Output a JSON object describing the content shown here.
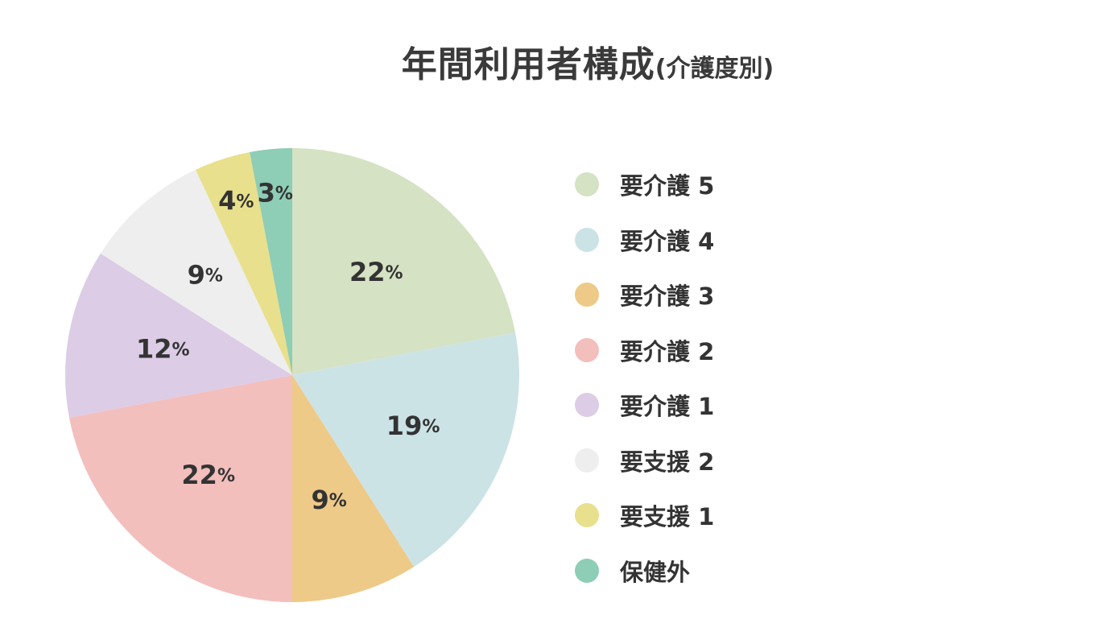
{
  "title": {
    "main": "年間利用者構成",
    "sub": "(介護度別)"
  },
  "chart_data": {
    "type": "pie",
    "title": "年間利用者構成(介護度別)",
    "start": "top",
    "direction": "clockwise",
    "legend_position": "right",
    "slices": [
      {
        "label": "要介護 5",
        "value": 22,
        "display": "22",
        "color": "#d5e2c3"
      },
      {
        "label": "要介護 4",
        "value": 19,
        "display": "19",
        "color": "#cce3e6"
      },
      {
        "label": "要介護 3",
        "value": 9,
        "display": "9",
        "color": "#eeca88"
      },
      {
        "label": "要介護 2",
        "value": 22,
        "display": "22",
        "color": "#f2bfbd"
      },
      {
        "label": "要介護 1",
        "value": 12,
        "display": "12",
        "color": "#dccce6"
      },
      {
        "label": "要支援 2",
        "value": 9,
        "display": "9",
        "color": "#eeeeee"
      },
      {
        "label": "要支援 1",
        "value": 4,
        "display": "4",
        "color": "#e8e08c"
      },
      {
        "label": "保健外",
        "value": 3,
        "display": "3",
        "color": "#8ecdb6"
      }
    ],
    "value_suffix": "%"
  }
}
